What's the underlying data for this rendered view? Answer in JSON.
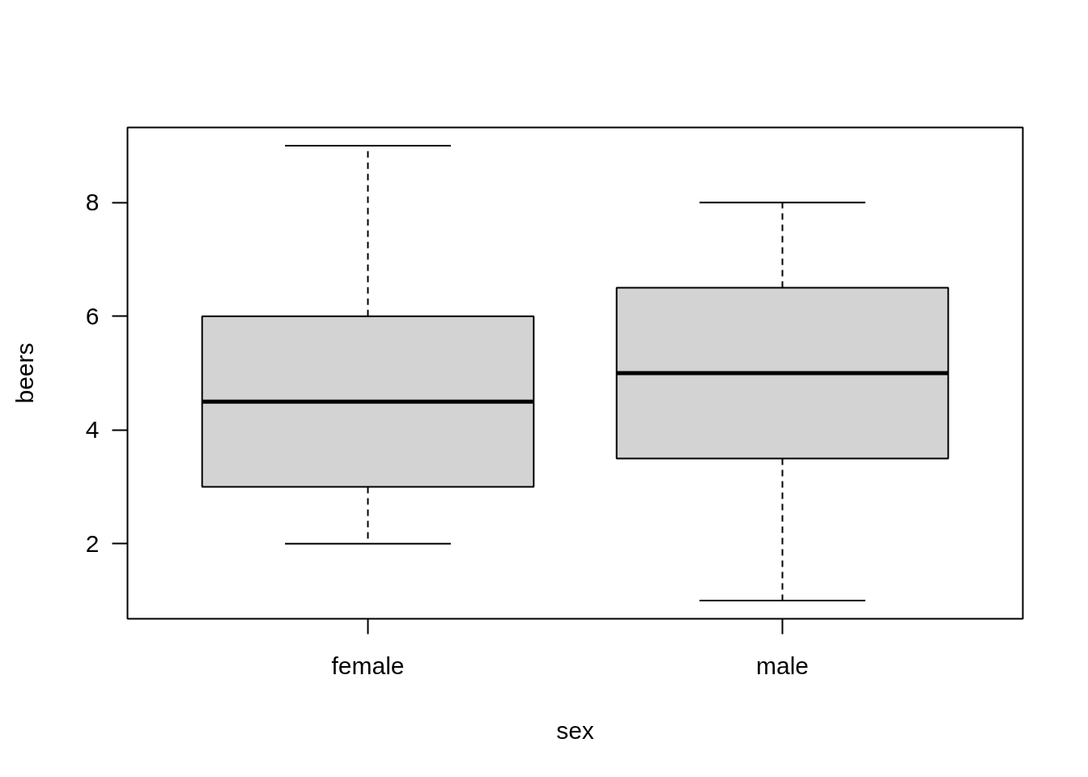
{
  "chart_data": {
    "type": "box",
    "xlabel": "sex",
    "ylabel": "beers",
    "categories": [
      "female",
      "male"
    ],
    "boxes": [
      {
        "low": 2,
        "q1": 3,
        "median": 4.5,
        "q3": 6,
        "high": 9
      },
      {
        "low": 1,
        "q1": 3.5,
        "median": 5,
        "q3": 6.5,
        "high": 8
      }
    ],
    "color": "#d3d3d3",
    "ylim": [
      0.68,
      9.32
    ],
    "yticks": [
      2,
      4,
      6,
      8
    ]
  }
}
